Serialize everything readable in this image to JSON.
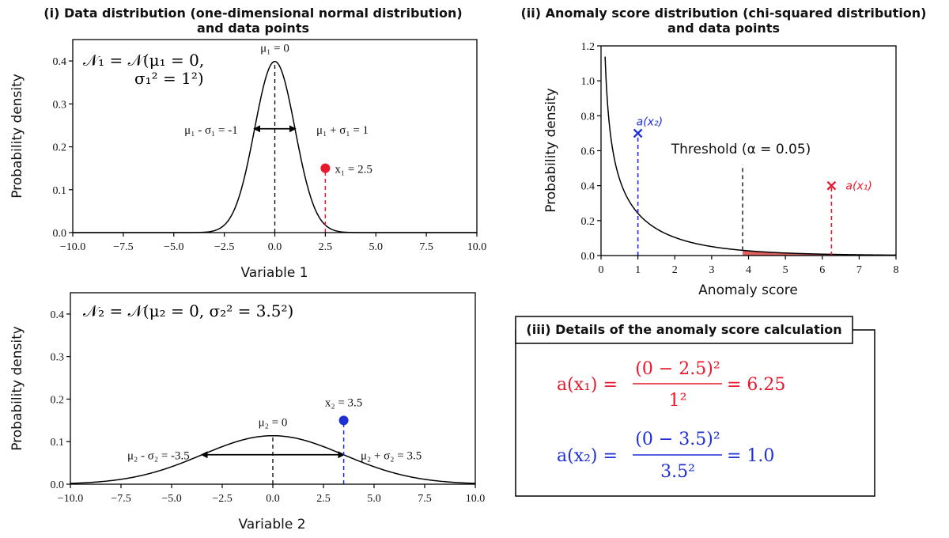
{
  "colors": {
    "red": "#e8192c",
    "blue": "#1f2fd6",
    "shade": "#e06060",
    "black": "#000000",
    "formula_red": "#e8192c",
    "formula_blue": "#1f2fd6"
  },
  "chart_data": [
    {
      "type": "line",
      "panel": "i",
      "title_lines": [
        "(i) Data distribution (one-dimensional normal distribution)",
        "and data points"
      ],
      "xlabel": "Variable 1",
      "ylabel": "Probability density",
      "xlim": [
        -10,
        10
      ],
      "ylim": [
        0,
        0.45
      ],
      "xticks": [
        -10,
        -7.5,
        -5,
        -2.5,
        0,
        2.5,
        5,
        7.5,
        10
      ],
      "xtick_labels": [
        "−10.0",
        "−7.5",
        "−5.0",
        "−2.5",
        "0.0",
        "2.5",
        "5.0",
        "7.5",
        "10.0"
      ],
      "yticks": [
        0,
        0.1,
        0.2,
        0.3,
        0.4
      ],
      "ytick_labels": [
        "0.0",
        "0.1",
        "0.2",
        "0.3",
        "0.4"
      ],
      "grid": false,
      "distribution": {
        "kind": "normal",
        "mu": 0,
        "sigma": 1
      },
      "formula_line1": "𝒩₁ = 𝒩(μ₁ = 0,",
      "formula_line2": "σ₁² = 1²)",
      "mean_label": "μ₁ = 0",
      "minus_label": "μ₁ - σ₁ = -1",
      "plus_label": "μ₁ + σ₁ = 1",
      "sigma_arrow": [
        -1,
        1
      ],
      "arrow_y": 0.242,
      "point": {
        "x": 2.5,
        "y": 0.15,
        "label": "x₁ = 2.5",
        "color": "red"
      }
    },
    {
      "type": "line",
      "panel": "ii",
      "title_lines": [
        "(ii) Anomaly score distribution (chi-squared distribution)",
        "and data points"
      ],
      "xlabel": "Anomaly score",
      "ylabel": "Probability density",
      "xlim": [
        0,
        8
      ],
      "ylim": [
        0,
        1.2
      ],
      "xticks": [
        0,
        1,
        2,
        3,
        4,
        5,
        6,
        7,
        8
      ],
      "xtick_labels": [
        "0",
        "1",
        "2",
        "3",
        "4",
        "5",
        "6",
        "7",
        "8"
      ],
      "yticks": [
        0,
        0.2,
        0.4,
        0.6,
        0.8,
        1.0,
        1.2
      ],
      "ytick_labels": [
        "0.0",
        "0.2",
        "0.4",
        "0.6",
        "0.8",
        "1.0",
        "1.2"
      ],
      "grid": false,
      "distribution": {
        "kind": "chi2",
        "df": 1
      },
      "threshold": {
        "x": 3.84,
        "y_top": 0.52,
        "label": "Threshold (α = 0.05)"
      },
      "markers": [
        {
          "x": 1.0,
          "y": 0.7,
          "label": "a(x₂)",
          "color": "blue"
        },
        {
          "x": 6.25,
          "y": 0.4,
          "label": "a(x₁)",
          "color": "red"
        }
      ]
    },
    {
      "type": "line",
      "panel": "iv",
      "xlabel": "Variable 2",
      "ylabel": "Probability density",
      "xlim": [
        -10,
        10
      ],
      "ylim": [
        0,
        0.45
      ],
      "xticks": [
        -10,
        -7.5,
        -5,
        -2.5,
        0,
        2.5,
        5,
        7.5,
        10
      ],
      "xtick_labels": [
        "−10.0",
        "−7.5",
        "−5.0",
        "−2.5",
        "0.0",
        "2.5",
        "5.0",
        "7.5",
        "10.0"
      ],
      "yticks": [
        0,
        0.1,
        0.2,
        0.3,
        0.4
      ],
      "ytick_labels": [
        "0.0",
        "0.1",
        "0.2",
        "0.3",
        "0.4"
      ],
      "grid": false,
      "distribution": {
        "kind": "normal",
        "mu": 0,
        "sigma": 3.5
      },
      "formula": "𝒩₂ = 𝒩(μ₂ = 0, σ₂² = 3.5²)",
      "mean_label": "μ₂ = 0",
      "minus_label": "μ₂ - σ₂ = -3.5",
      "plus_label": "μ₂ + σ₂ = 3.5",
      "sigma_arrow": [
        -3.5,
        3.5
      ],
      "arrow_y": 0.0693,
      "point": {
        "x": 3.5,
        "y": 0.15,
        "label": "x₂ = 3.5",
        "color": "blue"
      }
    }
  ],
  "details": {
    "title": "(iii) Details of the anomaly score calculation",
    "eq1": {
      "lhs": "a(x₁) =",
      "num": "(0 − 2.5)²",
      "den": "1²",
      "rhs": "= 6.25"
    },
    "eq2": {
      "lhs": "a(x₂) =",
      "num": "(0 − 3.5)²",
      "den": "3.5²",
      "rhs": "= 1.0"
    }
  }
}
